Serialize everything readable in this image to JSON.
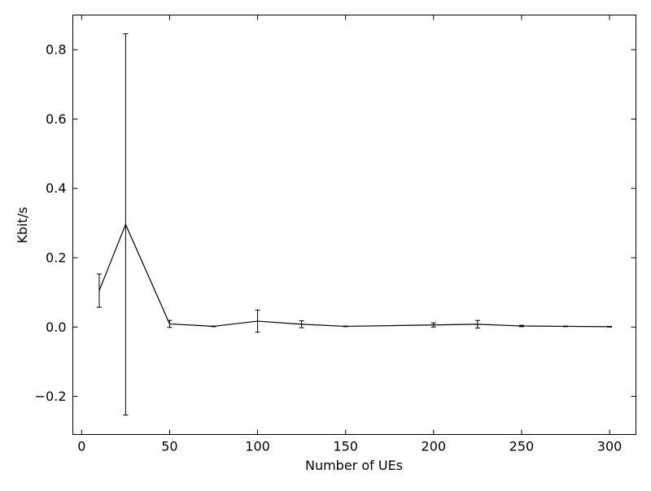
{
  "chart_data": {
    "type": "line",
    "title": "",
    "xlabel": "Number of UEs",
    "ylabel": "Kbit/s",
    "xlim": [
      -5,
      315
    ],
    "ylim": [
      -0.31,
      0.9
    ],
    "xticks": [
      0,
      50,
      100,
      150,
      200,
      250,
      300
    ],
    "xtick_labels": [
      "0",
      "50",
      "100",
      "150",
      "200",
      "250",
      "300"
    ],
    "yticks": [
      -0.2,
      0.0,
      0.2,
      0.4,
      0.6,
      0.8
    ],
    "ytick_labels": [
      "−0.2",
      "0.0",
      "0.2",
      "0.4",
      "0.6",
      "0.8"
    ],
    "grid": false,
    "series": [
      {
        "color": "#000000",
        "points": [
          {
            "x": 10,
            "y": 0.105,
            "err": 0.048
          },
          {
            "x": 25,
            "y": 0.296,
            "err": 0.55
          },
          {
            "x": 50,
            "y": 0.009,
            "err": 0.01
          },
          {
            "x": 75,
            "y": 0.002,
            "err": 0.001
          },
          {
            "x": 100,
            "y": 0.017,
            "err": 0.032
          },
          {
            "x": 125,
            "y": 0.008,
            "err": 0.01
          },
          {
            "x": 150,
            "y": 0.002,
            "err": 0.001
          },
          {
            "x": 200,
            "y": 0.006,
            "err": 0.006
          },
          {
            "x": 225,
            "y": 0.008,
            "err": 0.011
          },
          {
            "x": 250,
            "y": 0.003,
            "err": 0.002
          },
          {
            "x": 275,
            "y": 0.002,
            "err": 0.001
          },
          {
            "x": 300,
            "y": 0.001,
            "err": 0.001
          }
        ]
      }
    ]
  }
}
